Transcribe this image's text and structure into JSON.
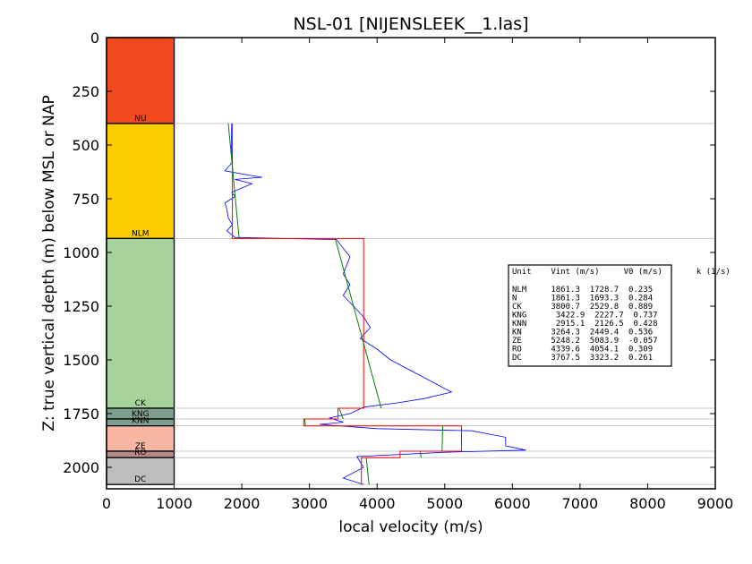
{
  "chart_data": {
    "type": "line",
    "title": "NSL-01 [NIJENSLEEK__1.las]",
    "xlabel": "local velocity (m/s)",
    "ylabel": "Z: true vertical depth (m) below MSL or NAP",
    "xlim": [
      0,
      9000
    ],
    "ylim": [
      2100,
      0
    ],
    "x_ticks": [
      0,
      1000,
      2000,
      3000,
      4000,
      5000,
      6000,
      7000,
      8000,
      9000
    ],
    "y_ticks": [
      0,
      250,
      500,
      750,
      1000,
      1250,
      1500,
      1750,
      2000
    ],
    "grid": false,
    "strat_column": [
      {
        "label": "NU",
        "top": 0,
        "base": 400,
        "color": "#f24a1f"
      },
      {
        "label": "NLM",
        "top": 400,
        "base": 935,
        "color": "#fdcc00"
      },
      {
        "label": "CK",
        "top": 935,
        "base": 1725,
        "color": "#a6d39b"
      },
      {
        "label": "KNG",
        "top": 1725,
        "base": 1775,
        "color": "#7e9f8e"
      },
      {
        "label": "KNN",
        "top": 1775,
        "base": 1807,
        "color": "#7e9f8e"
      },
      {
        "label": "ZE",
        "top": 1807,
        "base": 1925,
        "color": "#f7b7a3"
      },
      {
        "label": "RO",
        "top": 1925,
        "base": 1955,
        "color": "#b48a88"
      },
      {
        "label": "DC",
        "top": 1955,
        "base": 2080,
        "color": "#bdbdbd"
      }
    ],
    "series": [
      {
        "color": "#0000ff",
        "points": [
          [
            1850,
            400
          ],
          [
            1845,
            500
          ],
          [
            1860,
            580
          ],
          [
            1750,
            620
          ],
          [
            2100,
            640
          ],
          [
            2300,
            650
          ],
          [
            1900,
            660
          ],
          [
            2150,
            680
          ],
          [
            2000,
            700
          ],
          [
            1850,
            720
          ],
          [
            1900,
            740
          ],
          [
            1750,
            770
          ],
          [
            1780,
            800
          ],
          [
            1800,
            840
          ],
          [
            1860,
            870
          ],
          [
            1780,
            900
          ],
          [
            1900,
            930
          ],
          [
            3400,
            940
          ],
          [
            3500,
            980
          ],
          [
            3600,
            1020
          ],
          [
            3550,
            1060
          ],
          [
            3500,
            1100
          ],
          [
            3600,
            1150
          ],
          [
            3500,
            1200
          ],
          [
            3650,
            1250
          ],
          [
            3800,
            1300
          ],
          [
            3900,
            1350
          ],
          [
            3750,
            1400
          ],
          [
            4000,
            1450
          ],
          [
            4200,
            1500
          ],
          [
            4500,
            1550
          ],
          [
            4800,
            1600
          ],
          [
            5100,
            1650
          ],
          [
            4700,
            1680
          ],
          [
            4300,
            1700
          ],
          [
            3800,
            1720
          ],
          [
            3600,
            1750
          ],
          [
            3300,
            1770
          ],
          [
            3500,
            1790
          ],
          [
            3150,
            1800
          ],
          [
            4000,
            1820
          ],
          [
            5400,
            1830
          ],
          [
            5900,
            1860
          ],
          [
            5900,
            1900
          ],
          [
            6200,
            1920
          ],
          [
            5000,
            1930
          ],
          [
            3700,
            1950
          ],
          [
            3800,
            2000
          ],
          [
            3500,
            2050
          ],
          [
            3800,
            2080
          ]
        ]
      },
      {
        "color": "#ff0000",
        "points": [
          [
            1861.3,
            400
          ],
          [
            1861.3,
            935
          ],
          [
            3800.7,
            935
          ],
          [
            3800.7,
            1725
          ],
          [
            3422.9,
            1725
          ],
          [
            3422.9,
            1775
          ],
          [
            2915.1,
            1775
          ],
          [
            2915.1,
            1807
          ],
          [
            5248.2,
            1807
          ],
          [
            5248.2,
            1925
          ],
          [
            4339.6,
            1925
          ],
          [
            4339.6,
            1955
          ],
          [
            3767.5,
            1955
          ],
          [
            3767.5,
            2080
          ]
        ]
      },
      {
        "color": "#008000",
        "points": [
          [
            1800,
            400
          ],
          [
            1960,
            935
          ],
          [
            null,
            null
          ],
          [
            3380,
            935
          ],
          [
            4060,
            1725
          ],
          [
            null,
            null
          ],
          [
            3440,
            1725
          ],
          [
            3500,
            1775
          ],
          [
            null,
            null
          ],
          [
            2930,
            1775
          ],
          [
            2940,
            1807
          ],
          [
            null,
            null
          ],
          [
            4970,
            1807
          ],
          [
            4960,
            1925
          ],
          [
            null,
            null
          ],
          [
            4640,
            1925
          ],
          [
            4650,
            1955
          ],
          [
            null,
            null
          ],
          [
            3840,
            1955
          ],
          [
            3880,
            2080
          ]
        ]
      }
    ],
    "boundaries": [
      400,
      935,
      1725,
      1775,
      1807,
      1925,
      1955,
      2080
    ],
    "legend": {
      "position": "right",
      "header": "Unit    Vint (m/s)     V0 (m/s)       k (1/s)",
      "rows": [
        "NLM     1861.3  1728.7  0.235",
        "N       1861.3  1693.3  0.284",
        "CK      3800.7  2529.8  0.889",
        "KNG      3422.9  2227.7  0.737",
        "KNN      2915.1  2126.5  0.428",
        "KN      3264.3  2449.4  0.536",
        "ZE      5248.2  5083.9  -0.057",
        "RO      4339.6  4054.1  0.309",
        "DC      3767.5  3323.2  0.261"
      ]
    }
  }
}
